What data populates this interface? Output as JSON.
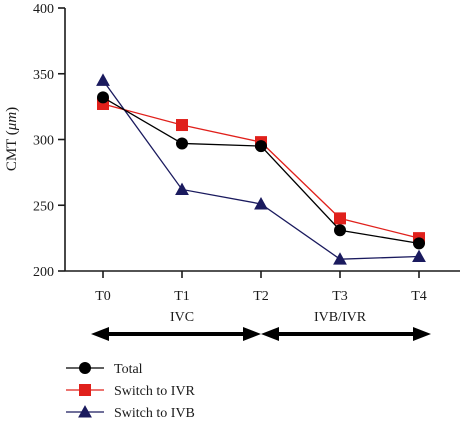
{
  "chart_data": {
    "type": "line",
    "categories": [
      "T0",
      "T1",
      "T2",
      "T3",
      "T4"
    ],
    "ylabel_prefix": "CMT (",
    "ylabel_unit": "μm",
    "ylabel_suffix": ")",
    "ylim": [
      200,
      400
    ],
    "yticks": [
      200,
      250,
      300,
      350,
      400
    ],
    "grid": false,
    "legend_placement": "bottom-left",
    "series": [
      {
        "name": "Total",
        "marker": "circle",
        "color": "#000000",
        "values": [
          332,
          297,
          295,
          231,
          221
        ]
      },
      {
        "name": "Switch to IVR",
        "marker": "square",
        "color": "#e0201b",
        "values": [
          327,
          311,
          298,
          240,
          225
        ]
      },
      {
        "name": "Switch to IVB",
        "marker": "triangle",
        "color": "#1a1a5e",
        "values": [
          345,
          262,
          251,
          209,
          211
        ]
      }
    ],
    "phases": [
      {
        "label": "IVC",
        "from": "T0",
        "to": "T2"
      },
      {
        "label": "IVB/IVR",
        "from": "T2",
        "to": "T4"
      }
    ]
  }
}
